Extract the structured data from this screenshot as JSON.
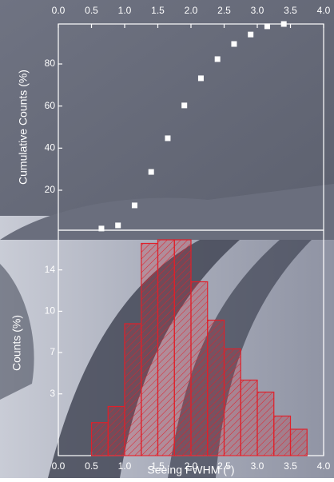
{
  "chart_data": [
    {
      "type": "scatter",
      "y_label": "Cumulative Counts (%)",
      "x": [
        0.65,
        0.9,
        1.15,
        1.4,
        1.65,
        1.9,
        2.15,
        2.4,
        2.65,
        2.9,
        3.15,
        3.4
      ],
      "values": [
        1.8,
        3.3,
        12.8,
        28.7,
        44.7,
        60.3,
        73.2,
        82.3,
        89.5,
        94,
        97.9,
        99
      ],
      "color": "#ffffff",
      "xlim": [
        0,
        4
      ],
      "xticks": [
        {
          "value": 0,
          "label": "0.0"
        },
        {
          "value": 0.5,
          "label": "0.5"
        },
        {
          "value": 1,
          "label": "1.0"
        },
        {
          "value": 1.5,
          "label": "1.5"
        },
        {
          "value": 2,
          "label": "2.0"
        },
        {
          "value": 2.5,
          "label": "2.5"
        },
        {
          "value": 3,
          "label": "3.0"
        },
        {
          "value": 3.5,
          "label": "3.5"
        },
        {
          "value": 4,
          "label": "4.0"
        }
      ],
      "ylim": [
        1,
        99
      ],
      "yticks": [
        20,
        40,
        60,
        80
      ]
    },
    {
      "type": "histogram",
      "x_label": "Seeing FWHM (\")",
      "y_label": "Counts (%)",
      "bins": [
        0.5,
        0.75,
        1,
        1.25,
        1.5,
        1.75,
        2,
        2.25,
        2.5,
        2.75,
        3,
        3.25,
        3.5,
        3.75
      ],
      "values": [
        1.05,
        2.4,
        9.3,
        16,
        16.3,
        16.3,
        12.8,
        9.6,
        7.2,
        4.6,
        3.6,
        1.6,
        0.5
      ],
      "color": "#e0202a",
      "xlim": [
        0,
        4
      ],
      "xticks": [
        {
          "value": 0,
          "label": "0.0"
        },
        {
          "value": 0.5,
          "label": "0.5"
        },
        {
          "value": 1,
          "label": "1.0"
        },
        {
          "value": 1.5,
          "label": "1.5"
        },
        {
          "value": 2,
          "label": "2.0"
        },
        {
          "value": 2.5,
          "label": "2.5"
        },
        {
          "value": 3,
          "label": "3.0"
        },
        {
          "value": 3.5,
          "label": "3.5"
        },
        {
          "value": 4,
          "label": "4.0"
        }
      ],
      "ylim": [
        -1.7,
        17.1
      ],
      "yticks": [
        {
          "value": 3.45,
          "label": "3"
        },
        {
          "value": 6.9,
          "label": "7"
        },
        {
          "value": 10.34,
          "label": "10"
        },
        {
          "value": 13.79,
          "label": "14"
        }
      ]
    }
  ]
}
